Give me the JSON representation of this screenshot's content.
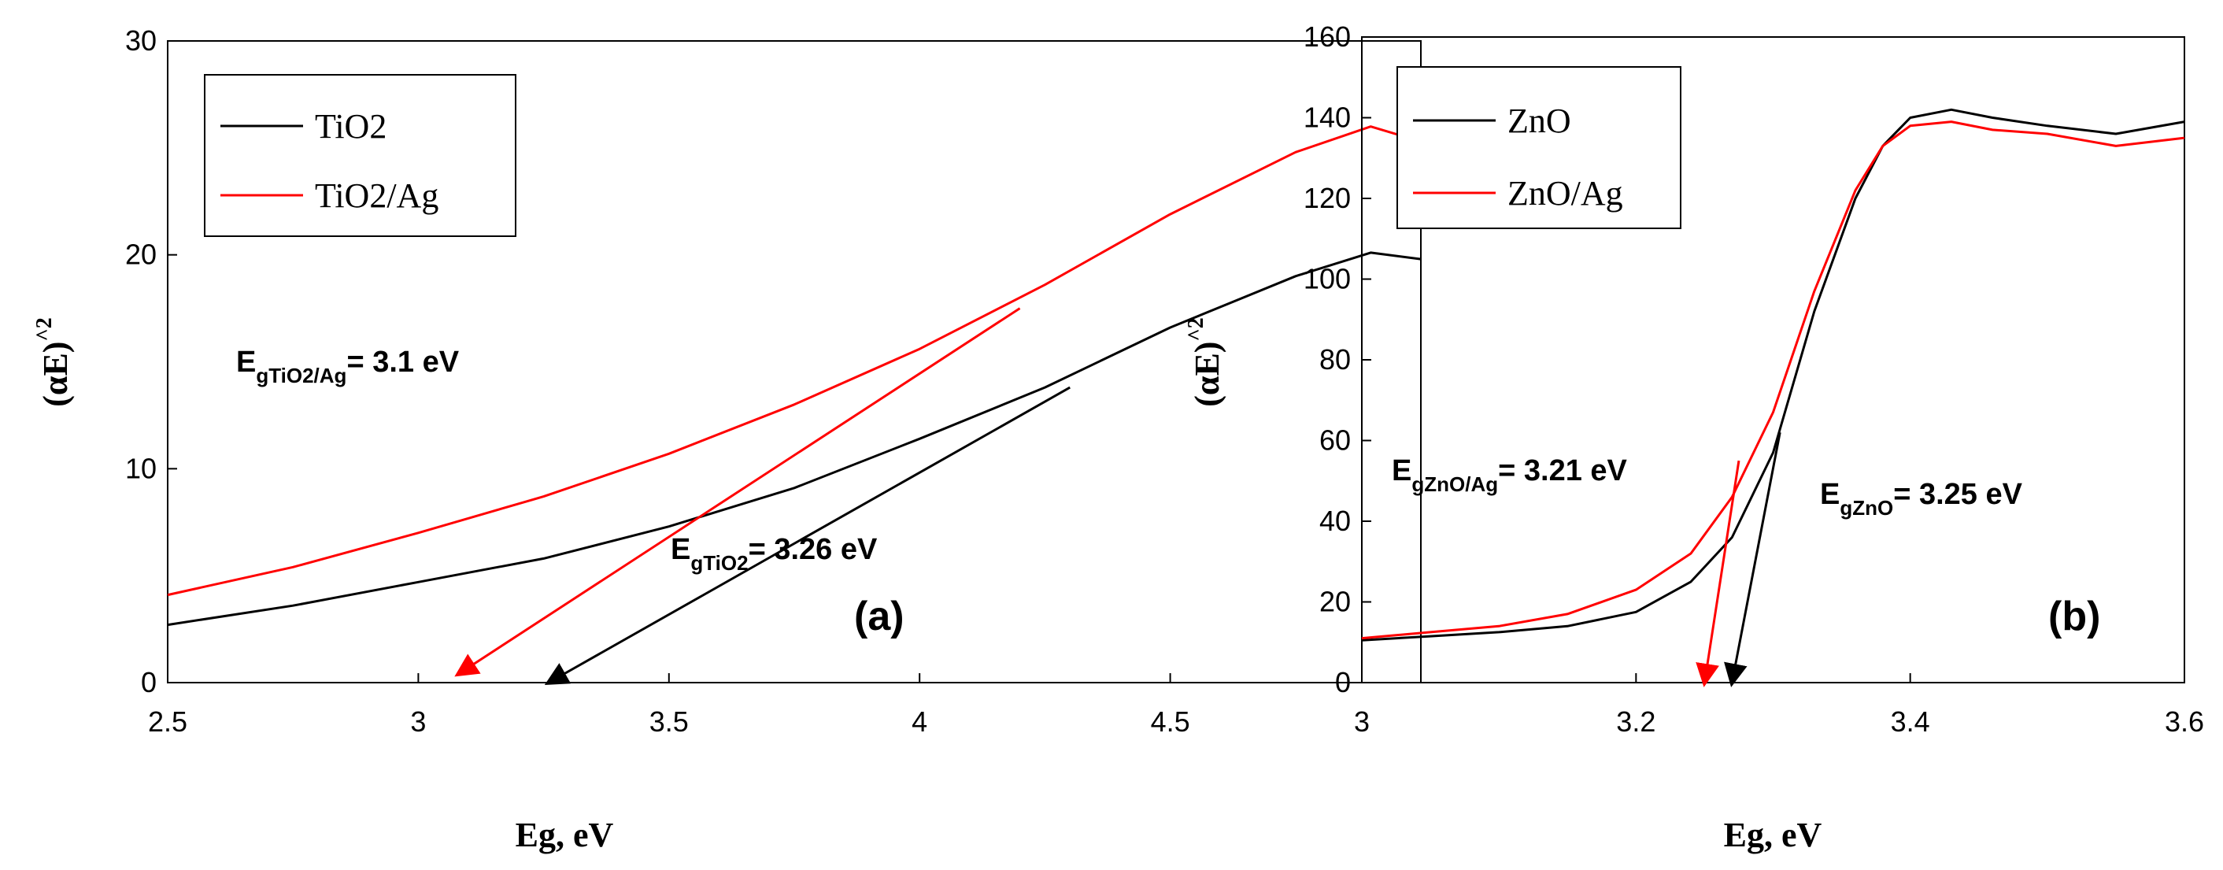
{
  "chart_data": [
    {
      "panel": "a",
      "type": "line",
      "panel_label": "(a)",
      "xlabel": "Eg, eV",
      "ylabel_main": "(αE)",
      "ylabel_sup": "^2",
      "xlim": [
        2.5,
        5.0
      ],
      "ylim": [
        0,
        30
      ],
      "xticks": [
        2.5,
        3,
        3.5,
        4,
        4.5
      ],
      "xtick_labels": [
        "2.5",
        "3",
        "3.5",
        "4",
        "4.5"
      ],
      "yticks": [
        0,
        10,
        20,
        30
      ],
      "ytick_labels": [
        "0",
        "10",
        "20",
        "30"
      ],
      "legend": [
        "TiO2",
        "TiO2/Ag"
      ],
      "series": [
        {
          "name": "TiO2",
          "color": "#000000",
          "x": [
            2.5,
            2.75,
            3.0,
            3.25,
            3.5,
            3.75,
            4.0,
            4.25,
            4.5,
            4.75,
            4.9,
            5.0
          ],
          "y": [
            2.7,
            3.6,
            4.7,
            5.8,
            7.3,
            9.1,
            11.4,
            13.8,
            16.6,
            19.0,
            20.1,
            19.8
          ]
        },
        {
          "name": "TiO2/Ag",
          "color": "#ff0000",
          "x": [
            2.5,
            2.75,
            3.0,
            3.25,
            3.5,
            3.75,
            4.0,
            4.25,
            4.5,
            4.75,
            4.9,
            5.0
          ],
          "y": [
            4.1,
            5.4,
            7.0,
            8.7,
            10.7,
            13.0,
            15.6,
            18.6,
            21.9,
            24.8,
            26.0,
            25.3
          ]
        }
      ],
      "arrows": [
        {
          "color": "#ff0000",
          "from": [
            4.2,
            17.5
          ],
          "to": [
            3.08,
            0.4
          ]
        },
        {
          "color": "#000000",
          "from": [
            4.3,
            13.8
          ],
          "to": [
            3.26,
            0.0
          ]
        }
      ],
      "annotations": [
        {
          "main": "E",
          "sub": "gTiO2/Ag",
          "value": "= 3.1 eV"
        },
        {
          "main": "E",
          "sub": "gTiO2",
          "value": "= 3.26 eV"
        }
      ]
    },
    {
      "panel": "b",
      "type": "line",
      "panel_label": "(b)",
      "xlabel": "Eg, eV",
      "ylabel_main": "(αE)",
      "ylabel_sup": "^2",
      "xlim": [
        3.0,
        3.6
      ],
      "ylim": [
        0,
        160
      ],
      "xticks": [
        3.0,
        3.2,
        3.4,
        3.6
      ],
      "xtick_labels": [
        "3",
        "3.2",
        "3.4",
        "3.6"
      ],
      "yticks": [
        0,
        20,
        40,
        60,
        80,
        100,
        120,
        140,
        160
      ],
      "ytick_labels": [
        "0",
        "20",
        "40",
        "60",
        "80",
        "100",
        "120",
        "140",
        "160"
      ],
      "legend": [
        "ZnO",
        "ZnO/Ag"
      ],
      "series": [
        {
          "name": "ZnO",
          "color": "#000000",
          "x": [
            3.0,
            3.05,
            3.1,
            3.15,
            3.2,
            3.24,
            3.27,
            3.3,
            3.33,
            3.36,
            3.38,
            3.4,
            3.43,
            3.46,
            3.5,
            3.55,
            3.6
          ],
          "y": [
            10.5,
            11.5,
            12.5,
            14,
            17.5,
            25,
            36,
            57,
            92,
            120,
            133,
            140,
            142,
            140,
            138,
            136,
            139
          ]
        },
        {
          "name": "ZnO/Ag",
          "color": "#ff0000",
          "x": [
            3.0,
            3.05,
            3.1,
            3.15,
            3.2,
            3.24,
            3.27,
            3.3,
            3.33,
            3.36,
            3.38,
            3.4,
            3.43,
            3.46,
            3.5,
            3.55,
            3.6
          ],
          "y": [
            11,
            12.5,
            14,
            17,
            23,
            32,
            46,
            67,
            97,
            122,
            133,
            138,
            139,
            137,
            136,
            133,
            135
          ]
        }
      ],
      "arrows": [
        {
          "color": "#ff0000",
          "from": [
            3.275,
            55
          ],
          "to": [
            3.25,
            0
          ]
        },
        {
          "color": "#000000",
          "from": [
            3.305,
            62
          ],
          "to": [
            3.27,
            0
          ]
        }
      ],
      "annotations": [
        {
          "main": "E",
          "sub": "gZnO/Ag",
          "value": "= 3.21 eV"
        },
        {
          "main": "E",
          "sub": "gZnO",
          "value": "= 3.25 eV"
        }
      ]
    }
  ]
}
